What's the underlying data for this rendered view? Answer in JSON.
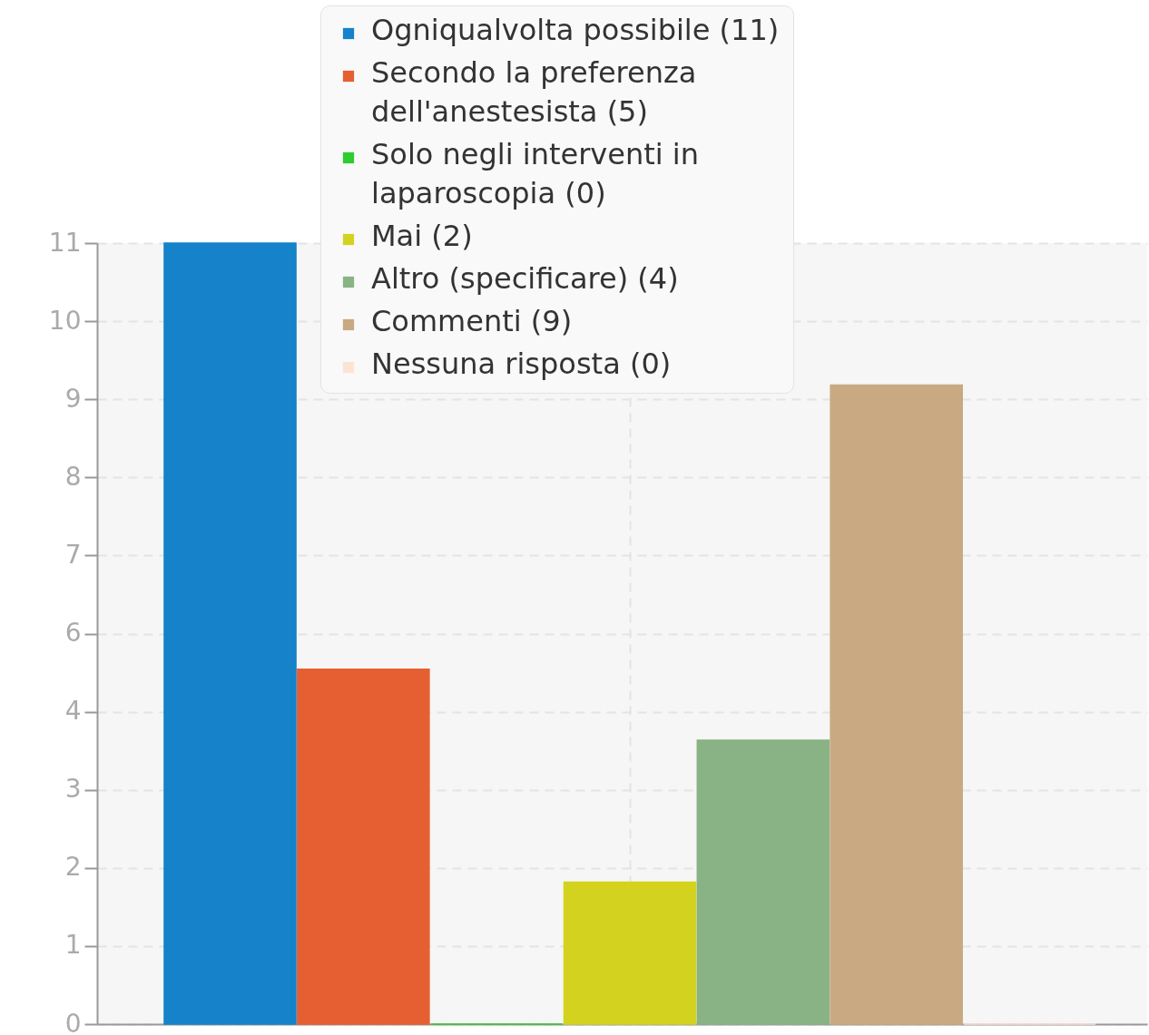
{
  "chart_data": {
    "type": "bar",
    "categories": [
      null
    ],
    "series": [
      {
        "name": "Ogniqualvolta possibile (11)",
        "color": "#1582c9",
        "values": [
          11
        ]
      },
      {
        "name": "Secondo la preferenza dell'anestesista (5)",
        "color": "#e65f33",
        "values": [
          5
        ]
      },
      {
        "name": "Solo negli interventi in laparoscopia (0)",
        "color": "#2ecc2e",
        "values": [
          0
        ]
      },
      {
        "name": "Mai (2)",
        "color": "#d3d31f",
        "values": [
          2
        ]
      },
      {
        "name": "Altro (specificare) (4)",
        "color": "#89b384",
        "values": [
          4
        ]
      },
      {
        "name": "Commenti (9)",
        "color": "#c8a981",
        "values": [
          9
        ]
      },
      {
        "name": "Nessuna risposta (0)",
        "color": "#fde3d6",
        "values": [
          0
        ]
      }
    ],
    "ylim": [
      0,
      11
    ],
    "yticks": [
      0,
      {
        "value": 1.1,
        "label": "1"
      },
      {
        "value": 2.2,
        "label": "2"
      },
      {
        "value": 3.3,
        "label": "3"
      },
      {
        "value": 4.4,
        "label": "4"
      },
      {
        "value": 5.5,
        "label": "6"
      },
      {
        "value": 6.6,
        "label": "7"
      },
      {
        "value": 7.7,
        "label": "8"
      },
      {
        "value": 8.8,
        "label": "9"
      },
      {
        "value": 9.9,
        "label": "10"
      },
      11
    ],
    "grid": true,
    "legend": "top",
    "tick_labels": "y"
  }
}
